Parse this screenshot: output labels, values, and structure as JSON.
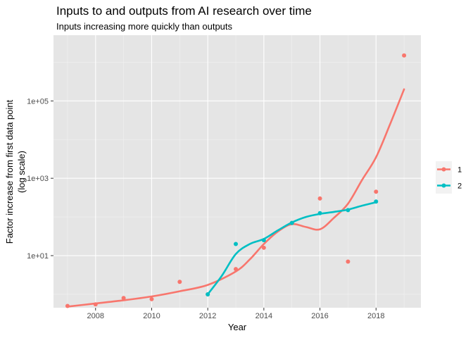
{
  "chart_data": {
    "type": "scatter",
    "title": "Inputs to and outputs from AI research over time",
    "subtitle": "Inputs increasing more quickly than outputs",
    "xlabel": "Year",
    "ylabel_lines": [
      "Factor increase from first data point",
      "(log scale)"
    ],
    "y_scale": "log10",
    "xlim": [
      2006.5,
      2019.6
    ],
    "ylim": [
      0.45,
      5000000
    ],
    "x_ticks": [
      2008,
      2010,
      2012,
      2014,
      2016,
      2018
    ],
    "x_tick_labels": [
      "2008",
      "2010",
      "2012",
      "2014",
      "2016",
      "2018"
    ],
    "y_ticks": [
      10,
      1000,
      100000
    ],
    "y_tick_labels": [
      "1e+01",
      "1e+03",
      "1e+05"
    ],
    "background": "#e5e5e5",
    "grid": true,
    "legend_position": "right",
    "series": [
      {
        "name": "1",
        "color": "#f8766d",
        "points": [
          {
            "x": 2007,
            "y": 0.5
          },
          {
            "x": 2008,
            "y": 0.55
          },
          {
            "x": 2009,
            "y": 0.8
          },
          {
            "x": 2010,
            "y": 0.75
          },
          {
            "x": 2011,
            "y": 2.1
          },
          {
            "x": 2012,
            "y": 1.0
          },
          {
            "x": 2013,
            "y": 4.5
          },
          {
            "x": 2014,
            "y": 16
          },
          {
            "x": 2015,
            "y": 70
          },
          {
            "x": 2016,
            "y": 300
          },
          {
            "x": 2017,
            "y": 7
          },
          {
            "x": 2018,
            "y": 450
          },
          {
            "x": 2019,
            "y": 1500000
          }
        ],
        "smooth": [
          {
            "x": 2007,
            "y": 0.48
          },
          {
            "x": 2008,
            "y": 0.58
          },
          {
            "x": 2009,
            "y": 0.7
          },
          {
            "x": 2010,
            "y": 0.88
          },
          {
            "x": 2011,
            "y": 1.2
          },
          {
            "x": 2012,
            "y": 1.75
          },
          {
            "x": 2013,
            "y": 3.9
          },
          {
            "x": 2013.5,
            "y": 8
          },
          {
            "x": 2014,
            "y": 20
          },
          {
            "x": 2014.5,
            "y": 42
          },
          {
            "x": 2015,
            "y": 65
          },
          {
            "x": 2015.5,
            "y": 55
          },
          {
            "x": 2016,
            "y": 48
          },
          {
            "x": 2016.5,
            "y": 95
          },
          {
            "x": 2017,
            "y": 220
          },
          {
            "x": 2017.5,
            "y": 900
          },
          {
            "x": 2018,
            "y": 3500
          },
          {
            "x": 2018.5,
            "y": 25000
          },
          {
            "x": 2019,
            "y": 200000
          }
        ]
      },
      {
        "name": "2",
        "color": "#00bfc4",
        "points": [
          {
            "x": 2012,
            "y": 1.0
          },
          {
            "x": 2013,
            "y": 20
          },
          {
            "x": 2014,
            "y": 25
          },
          {
            "x": 2015,
            "y": 70
          },
          {
            "x": 2016,
            "y": 125
          },
          {
            "x": 2017,
            "y": 150
          },
          {
            "x": 2018,
            "y": 250
          }
        ],
        "smooth": [
          {
            "x": 2012,
            "y": 1.0
          },
          {
            "x": 2012.5,
            "y": 3
          },
          {
            "x": 2013,
            "y": 11
          },
          {
            "x": 2013.5,
            "y": 20
          },
          {
            "x": 2014,
            "y": 27
          },
          {
            "x": 2014.5,
            "y": 45
          },
          {
            "x": 2015,
            "y": 72
          },
          {
            "x": 2015.5,
            "y": 100
          },
          {
            "x": 2016,
            "y": 120
          },
          {
            "x": 2016.5,
            "y": 135
          },
          {
            "x": 2017,
            "y": 155
          },
          {
            "x": 2017.5,
            "y": 195
          },
          {
            "x": 2018,
            "y": 240
          }
        ]
      }
    ]
  }
}
